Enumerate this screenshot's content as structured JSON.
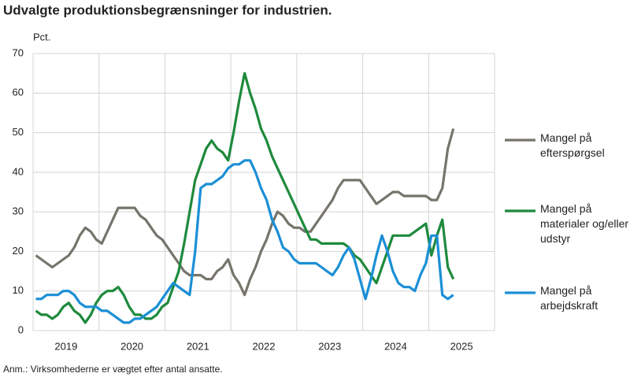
{
  "chart_data": {
    "type": "line",
    "title": "Udvalgte produktionsbegrænsninger for industrien.",
    "y_label": "Pct.",
    "note": "Anm.: Virksomhederne er vægtet efter antal ansatte.",
    "categories": [
      null,
      null,
      null,
      null,
      null,
      null,
      "2019",
      null,
      null,
      null,
      null,
      null,
      null,
      null,
      null,
      null,
      null,
      null,
      "2020",
      null,
      null,
      null,
      null,
      null,
      null,
      null,
      null,
      null,
      null,
      null,
      "2021",
      null,
      null,
      null,
      null,
      null,
      null,
      null,
      null,
      null,
      null,
      null,
      "2022",
      null,
      null,
      null,
      null,
      null,
      null,
      null,
      null,
      null,
      null,
      null,
      "2023",
      null,
      null,
      null,
      null,
      null,
      null,
      null,
      null,
      null,
      null,
      null,
      "2024",
      null,
      null,
      null,
      null,
      null,
      null,
      null,
      null,
      null,
      null,
      null,
      "2025",
      null,
      null,
      null,
      null,
      null
    ],
    "ylim": [
      0,
      70
    ],
    "yticks": [
      0,
      10,
      20,
      30,
      40,
      50,
      60,
      70
    ],
    "grid": true,
    "series": [
      {
        "name": "Mangel på efterspørgsel",
        "color": "#76746b",
        "values": [
          19,
          18,
          17,
          16,
          17,
          18,
          19,
          21,
          24,
          26,
          25,
          23,
          22,
          25,
          28,
          31,
          31,
          31,
          31,
          29,
          28,
          26,
          24,
          23,
          21,
          19,
          17,
          15,
          14,
          14,
          14,
          13,
          13,
          15,
          16,
          18,
          14,
          12,
          9,
          13,
          16,
          20,
          23,
          27,
          30,
          29,
          27,
          26,
          26,
          25,
          25,
          27,
          29,
          31,
          33,
          36,
          38,
          38,
          38,
          38,
          36,
          34,
          32,
          33,
          34,
          35,
          35,
          34,
          34,
          34,
          34,
          34,
          33,
          33,
          36,
          46,
          51,
          null,
          null,
          null,
          null,
          null,
          null,
          null
        ]
      },
      {
        "name": "Mangel på materialer og/eller udstyr",
        "color": "#1e8a3c",
        "values": [
          5,
          4,
          4,
          3,
          4,
          6,
          7,
          5,
          4,
          2,
          4,
          7,
          9,
          10,
          10,
          11,
          9,
          6,
          4,
          4,
          3,
          3,
          4,
          6,
          7,
          11,
          15,
          22,
          30,
          38,
          42,
          46,
          48,
          46,
          45,
          43,
          50,
          58,
          65,
          60,
          56,
          51,
          48,
          44,
          41,
          38,
          35,
          32,
          29,
          26,
          23,
          23,
          22,
          22,
          22,
          22,
          22,
          21,
          19,
          18,
          16,
          14,
          12,
          16,
          20,
          24,
          24,
          24,
          24,
          25,
          26,
          27,
          19,
          24,
          28,
          16,
          13,
          null,
          null,
          null,
          null,
          null,
          null,
          null
        ]
      },
      {
        "name": "Mangel på arbejdskraft",
        "color": "#1b8fd6",
        "values": [
          8,
          8,
          9,
          9,
          9,
          10,
          10,
          9,
          7,
          6,
          6,
          6,
          5,
          5,
          4,
          3,
          2,
          2,
          3,
          3,
          4,
          5,
          6,
          8,
          10,
          12,
          11,
          10,
          9,
          20,
          36,
          37,
          37,
          38,
          39,
          41,
          42,
          42,
          43,
          43,
          40,
          36,
          33,
          28,
          25,
          21,
          20,
          18,
          17,
          17,
          17,
          17,
          16,
          15,
          14,
          16,
          19,
          21,
          18,
          13,
          8,
          13,
          19,
          24,
          20,
          15,
          12,
          11,
          11,
          10,
          14,
          17,
          24,
          24,
          9,
          8,
          9,
          null,
          null,
          null,
          null,
          null,
          null,
          null
        ]
      }
    ]
  }
}
